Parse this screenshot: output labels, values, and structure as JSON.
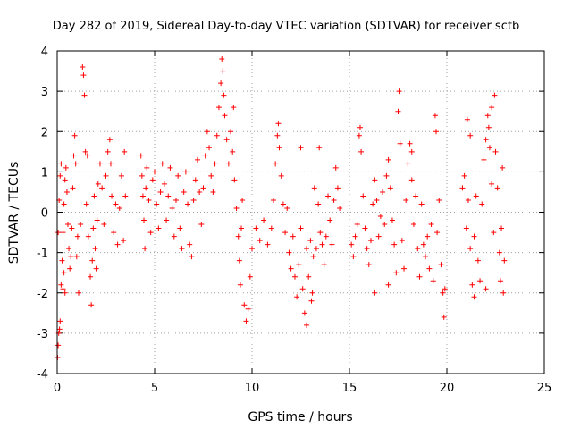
{
  "chart_data": {
    "type": "scatter",
    "title": "Day 282 of 2019, Sidereal Day-to-day VTEC variation (SDTVAR) for receiver sctb",
    "xlabel": "GPS time / hours",
    "ylabel": "SDTVAR / TECUs",
    "xlim": [
      0,
      25
    ],
    "ylim": [
      -4,
      4
    ],
    "xticks": [
      0,
      5,
      10,
      15,
      20,
      25
    ],
    "xtick_labels": [
      "0",
      "5",
      "10",
      "15",
      "20",
      "25"
    ],
    "yticks": [
      -4,
      -3,
      -2,
      -1,
      0,
      1,
      2,
      3,
      4
    ],
    "ytick_labels": [
      "-4",
      "-3",
      "-2",
      "-1",
      "0",
      "1",
      "2",
      "3",
      "4"
    ],
    "grid": true,
    "marker": "+",
    "series": [
      {
        "name": "SDTVAR",
        "color": "#ff0000",
        "points": [
          [
            0.02,
            -3.6
          ],
          [
            0.05,
            -3.3
          ],
          [
            0.08,
            -3.0
          ],
          [
            0.12,
            -2.9
          ],
          [
            0.15,
            -2.7
          ],
          [
            0.2,
            -1.8
          ],
          [
            0.25,
            -1.2
          ],
          [
            0.3,
            -0.5
          ],
          [
            0.35,
            0.2
          ],
          [
            0.4,
            0.8
          ],
          [
            0.45,
            1.1
          ],
          [
            0.5,
            0.5
          ],
          [
            0.55,
            -0.3
          ],
          [
            0.6,
            -0.9
          ],
          [
            0.65,
            -1.4
          ],
          [
            0.7,
            -1.1
          ],
          [
            0.75,
            -0.4
          ],
          [
            0.8,
            0.6
          ],
          [
            0.85,
            1.4
          ],
          [
            0.9,
            1.9
          ],
          [
            0.95,
            1.2
          ],
          [
            1.0,
            -1.1
          ],
          [
            1.05,
            -0.6
          ],
          [
            0.05,
            -0.5
          ],
          [
            0.1,
            0.3
          ],
          [
            0.15,
            0.9
          ],
          [
            0.2,
            1.2
          ],
          [
            0.3,
            -1.9
          ],
          [
            0.35,
            -1.5
          ],
          [
            0.4,
            -2.0
          ],
          [
            1.3,
            3.6
          ],
          [
            1.35,
            3.4
          ],
          [
            1.4,
            2.9
          ],
          [
            1.45,
            1.5
          ],
          [
            1.5,
            0.2
          ],
          [
            1.6,
            -0.6
          ],
          [
            1.7,
            -1.6
          ],
          [
            1.75,
            -2.3
          ],
          [
            1.8,
            -1.2
          ],
          [
            1.85,
            -0.4
          ],
          [
            1.9,
            0.4
          ],
          [
            1.95,
            -0.9
          ],
          [
            2.0,
            -1.4
          ],
          [
            2.05,
            -0.2
          ],
          [
            2.1,
            0.7
          ],
          [
            2.2,
            1.2
          ],
          [
            2.3,
            0.6
          ],
          [
            2.4,
            -0.3
          ],
          [
            2.5,
            0.9
          ],
          [
            2.6,
            1.5
          ],
          [
            2.7,
            1.8
          ],
          [
            2.75,
            1.2
          ],
          [
            2.8,
            0.4
          ],
          [
            2.9,
            -0.5
          ],
          [
            3.0,
            0.2
          ],
          [
            3.1,
            -0.8
          ],
          [
            3.2,
            0.1
          ],
          [
            3.3,
            0.9
          ],
          [
            3.4,
            -0.7
          ],
          [
            3.45,
            1.5
          ],
          [
            3.5,
            0.4
          ],
          [
            1.1,
            -2.0
          ],
          [
            1.2,
            -0.3
          ],
          [
            1.55,
            1.4
          ],
          [
            4.3,
            1.4
          ],
          [
            4.35,
            0.9
          ],
          [
            4.4,
            0.4
          ],
          [
            4.45,
            -0.2
          ],
          [
            4.5,
            -0.9
          ],
          [
            4.55,
            0.6
          ],
          [
            4.6,
            1.1
          ],
          [
            4.7,
            0.3
          ],
          [
            4.8,
            -0.5
          ],
          [
            4.9,
            0.8
          ],
          [
            5.0,
            1.0
          ],
          [
            5.1,
            0.2
          ],
          [
            5.2,
            -0.4
          ],
          [
            5.3,
            0.5
          ],
          [
            5.4,
            1.2
          ],
          [
            5.5,
            0.7
          ],
          [
            5.6,
            -0.2
          ],
          [
            5.7,
            0.4
          ],
          [
            5.8,
            1.1
          ],
          [
            5.9,
            0.1
          ],
          [
            6.0,
            -0.6
          ],
          [
            6.1,
            0.3
          ],
          [
            6.2,
            0.9
          ],
          [
            6.3,
            -0.4
          ],
          [
            6.4,
            -0.9
          ],
          [
            6.5,
            0.5
          ],
          [
            6.6,
            1.0
          ],
          [
            6.7,
            0.2
          ],
          [
            6.8,
            -0.8
          ],
          [
            6.9,
            -1.1
          ],
          [
            7.0,
            0.3
          ],
          [
            7.1,
            0.8
          ],
          [
            7.2,
            1.3
          ],
          [
            7.3,
            0.5
          ],
          [
            7.4,
            -0.3
          ],
          [
            7.5,
            0.6
          ],
          [
            7.6,
            1.4
          ],
          [
            7.7,
            2.0
          ],
          [
            7.8,
            1.6
          ],
          [
            7.9,
            0.9
          ],
          [
            8.0,
            0.5
          ],
          [
            8.1,
            1.2
          ],
          [
            8.2,
            1.9
          ],
          [
            8.3,
            2.6
          ],
          [
            8.4,
            3.2
          ],
          [
            8.45,
            3.8
          ],
          [
            8.5,
            3.5
          ],
          [
            8.55,
            2.9
          ],
          [
            8.6,
            2.4
          ],
          [
            8.7,
            1.8
          ],
          [
            8.8,
            1.2
          ],
          [
            8.9,
            2.0
          ],
          [
            9.0,
            1.5
          ],
          [
            9.05,
            2.6
          ],
          [
            9.1,
            0.8
          ],
          [
            9.2,
            0.1
          ],
          [
            9.3,
            -0.6
          ],
          [
            9.35,
            -1.2
          ],
          [
            9.4,
            -1.8
          ],
          [
            9.45,
            -0.4
          ],
          [
            9.5,
            0.3
          ],
          [
            9.6,
            -2.3
          ],
          [
            9.7,
            -2.7
          ],
          [
            9.8,
            -2.4
          ],
          [
            9.9,
            -1.6
          ],
          [
            10.0,
            -0.9
          ],
          [
            10.2,
            -0.4
          ],
          [
            10.4,
            -0.7
          ],
          [
            10.6,
            -0.2
          ],
          [
            10.8,
            -0.8
          ],
          [
            11.0,
            -0.4
          ],
          [
            11.1,
            0.3
          ],
          [
            11.2,
            1.2
          ],
          [
            11.3,
            1.9
          ],
          [
            11.35,
            2.2
          ],
          [
            11.4,
            1.6
          ],
          [
            11.5,
            0.9
          ],
          [
            11.6,
            0.2
          ],
          [
            11.7,
            -0.5
          ],
          [
            11.8,
            0.1
          ],
          [
            11.9,
            -1.0
          ],
          [
            12.0,
            -1.4
          ],
          [
            12.1,
            -0.6
          ],
          [
            12.2,
            -1.6
          ],
          [
            12.3,
            -2.1
          ],
          [
            12.4,
            -1.3
          ],
          [
            12.5,
            -0.4
          ],
          [
            12.6,
            -1.9
          ],
          [
            12.7,
            -2.5
          ],
          [
            12.8,
            -2.8
          ],
          [
            12.9,
            -1.6
          ],
          [
            13.0,
            -0.7
          ],
          [
            13.05,
            -2.2
          ],
          [
            13.1,
            -2.0
          ],
          [
            13.15,
            -1.1
          ],
          [
            13.2,
            0.6
          ],
          [
            13.3,
            -0.9
          ],
          [
            13.4,
            0.2
          ],
          [
            13.45,
            1.6
          ],
          [
            13.5,
            -0.5
          ],
          [
            13.6,
            -0.8
          ],
          [
            13.7,
            -1.3
          ],
          [
            13.8,
            -0.6
          ],
          [
            13.9,
            0.4
          ],
          [
            14.0,
            -0.2
          ],
          [
            14.1,
            -0.8
          ],
          [
            14.2,
            0.3
          ],
          [
            14.3,
            1.1
          ],
          [
            14.4,
            0.6
          ],
          [
            14.5,
            0.1
          ],
          [
            12.5,
            1.6
          ],
          [
            12.8,
            -0.9
          ],
          [
            15.1,
            -0.8
          ],
          [
            15.2,
            -1.1
          ],
          [
            15.3,
            -0.6
          ],
          [
            15.4,
            -0.3
          ],
          [
            15.5,
            1.9
          ],
          [
            15.55,
            2.1
          ],
          [
            15.6,
            1.5
          ],
          [
            15.7,
            0.4
          ],
          [
            15.8,
            -0.4
          ],
          [
            15.9,
            -0.9
          ],
          [
            16.0,
            -1.3
          ],
          [
            16.1,
            -0.7
          ],
          [
            16.2,
            0.2
          ],
          [
            16.3,
            0.8
          ],
          [
            16.4,
            0.3
          ],
          [
            16.5,
            -0.6
          ],
          [
            16.6,
            -0.1
          ],
          [
            16.7,
            0.5
          ],
          [
            16.8,
            -0.3
          ],
          [
            16.9,
            0.9
          ],
          [
            17.0,
            1.3
          ],
          [
            17.1,
            0.6
          ],
          [
            17.2,
            -0.2
          ],
          [
            17.3,
            -0.8
          ],
          [
            17.4,
            -1.5
          ],
          [
            17.5,
            2.5
          ],
          [
            17.55,
            3.0
          ],
          [
            17.6,
            1.7
          ],
          [
            17.7,
            -0.7
          ],
          [
            17.8,
            -1.4
          ],
          [
            17.9,
            0.3
          ],
          [
            18.0,
            1.2
          ],
          [
            18.1,
            1.7
          ],
          [
            18.2,
            0.8
          ],
          [
            18.3,
            -0.3
          ],
          [
            18.4,
            0.4
          ],
          [
            18.5,
            -0.9
          ],
          [
            18.6,
            -1.6
          ],
          [
            18.7,
            0.2
          ],
          [
            18.8,
            -0.8
          ],
          [
            18.9,
            -1.1
          ],
          [
            19.0,
            -0.6
          ],
          [
            19.1,
            -1.4
          ],
          [
            19.2,
            -0.3
          ],
          [
            19.3,
            -1.7
          ],
          [
            19.4,
            2.4
          ],
          [
            19.45,
            2.0
          ],
          [
            19.5,
            -0.5
          ],
          [
            19.6,
            0.3
          ],
          [
            19.7,
            -1.3
          ],
          [
            19.8,
            -2.0
          ],
          [
            19.85,
            -2.6
          ],
          [
            19.9,
            -1.9
          ],
          [
            16.3,
            -2.0
          ],
          [
            17.0,
            -1.8
          ],
          [
            18.2,
            1.5
          ],
          [
            20.8,
            0.6
          ],
          [
            20.9,
            0.9
          ],
          [
            21.0,
            -0.4
          ],
          [
            21.05,
            2.3
          ],
          [
            21.1,
            0.3
          ],
          [
            21.2,
            -0.9
          ],
          [
            21.3,
            -1.8
          ],
          [
            21.4,
            -0.6
          ],
          [
            21.5,
            0.4
          ],
          [
            21.6,
            -1.2
          ],
          [
            21.7,
            -1.7
          ],
          [
            21.8,
            0.2
          ],
          [
            21.9,
            1.3
          ],
          [
            22.0,
            1.8
          ],
          [
            22.1,
            2.4
          ],
          [
            22.15,
            2.1
          ],
          [
            22.2,
            1.6
          ],
          [
            22.3,
            0.7
          ],
          [
            22.4,
            -0.5
          ],
          [
            22.45,
            2.9
          ],
          [
            22.5,
            1.5
          ],
          [
            22.6,
            0.6
          ],
          [
            22.7,
            -1.0
          ],
          [
            22.75,
            -1.7
          ],
          [
            22.8,
            -0.4
          ],
          [
            22.85,
            1.1
          ],
          [
            22.9,
            -2.0
          ],
          [
            22.95,
            -1.2
          ],
          [
            21.2,
            1.9
          ],
          [
            21.4,
            -2.1
          ],
          [
            22.0,
            -1.9
          ],
          [
            22.3,
            2.6
          ]
        ]
      }
    ]
  }
}
